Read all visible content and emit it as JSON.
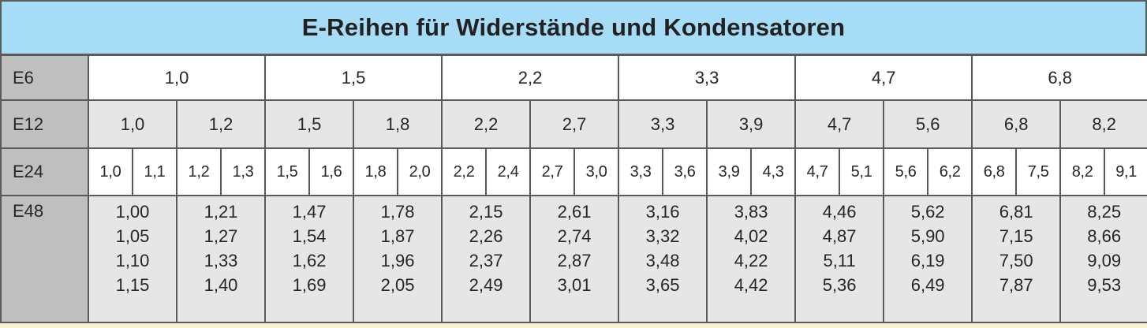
{
  "title": "E-Reihen für Widerstände und Kondensatoren",
  "rows": {
    "e6": {
      "label": "E6",
      "values": [
        "1,0",
        "1,5",
        "2,2",
        "3,3",
        "4,7",
        "6,8"
      ]
    },
    "e12": {
      "label": "E12",
      "values": [
        "1,0",
        "1,2",
        "1,5",
        "1,8",
        "2,2",
        "2,7",
        "3,3",
        "3,9",
        "4,7",
        "5,6",
        "6,8",
        "8,2"
      ]
    },
    "e24": {
      "label": "E24",
      "values": [
        "1,0",
        "1,1",
        "1,2",
        "1,3",
        "1,5",
        "1,6",
        "1,8",
        "2,0",
        "2,2",
        "2,4",
        "2,7",
        "3,0",
        "3,3",
        "3,6",
        "3,9",
        "4,3",
        "4,7",
        "5,1",
        "5,6",
        "6,2",
        "6,8",
        "7,5",
        "8,2",
        "9,1"
      ]
    },
    "e48": {
      "label": "E48",
      "columns": [
        [
          "1,00",
          "1,05",
          "1,10",
          "1,15"
        ],
        [
          "1,21",
          "1,27",
          "1,33",
          "1,40"
        ],
        [
          "1,47",
          "1,54",
          "1,62",
          "1,69"
        ],
        [
          "1,78",
          "1,87",
          "1,96",
          "2,05"
        ],
        [
          "2,15",
          "2,26",
          "2,37",
          "2,49"
        ],
        [
          "2,61",
          "2,74",
          "2,87",
          "3,01"
        ],
        [
          "3,16",
          "3,32",
          "3,48",
          "3,65"
        ],
        [
          "3,83",
          "4,02",
          "4,22",
          "4,42"
        ],
        [
          "4,46",
          "4,87",
          "5,11",
          "5,36"
        ],
        [
          "5,62",
          "5,90",
          "6,19",
          "6,49"
        ],
        [
          "6,81",
          "7,15",
          "7,50",
          "7,87"
        ],
        [
          "8,25",
          "8,66",
          "9,09",
          "9,53"
        ]
      ]
    }
  },
  "colors": {
    "title_bg": "#a7dcf6",
    "label_bg": "#bfbfbf",
    "cell_light": "#ffffff",
    "cell_gray": "#e6e6e6",
    "footer_bg": "#fbf1d4"
  }
}
